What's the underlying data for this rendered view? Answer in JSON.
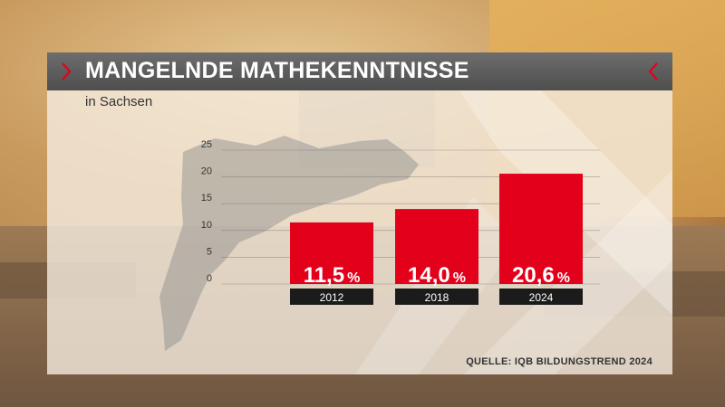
{
  "header": {
    "title": "MANGELNDE MATHEKENNTNISSE",
    "subtitle": "in Sachsen"
  },
  "footer": {
    "source": "QUELLE: IQB BILDUNGSTREND 2024"
  },
  "colors": {
    "bar": "#e3001b",
    "chevron": "#e3001b",
    "label_box": "#1b1b1b",
    "title_bar": "#5a5a5a"
  },
  "chart_data": {
    "type": "bar",
    "categories": [
      "2012",
      "2018",
      "2024"
    ],
    "values": [
      11.5,
      14.0,
      20.6
    ],
    "value_labels": [
      "11,5",
      "14,0",
      "20,6"
    ],
    "value_unit": "%",
    "yticks": [
      "0",
      "5",
      "10",
      "15",
      "20",
      "25"
    ],
    "ylim": [
      0,
      25
    ],
    "grid": true,
    "title": "MANGELNDE MATHEKENNTNISSE",
    "xlabel": "",
    "ylabel": ""
  }
}
